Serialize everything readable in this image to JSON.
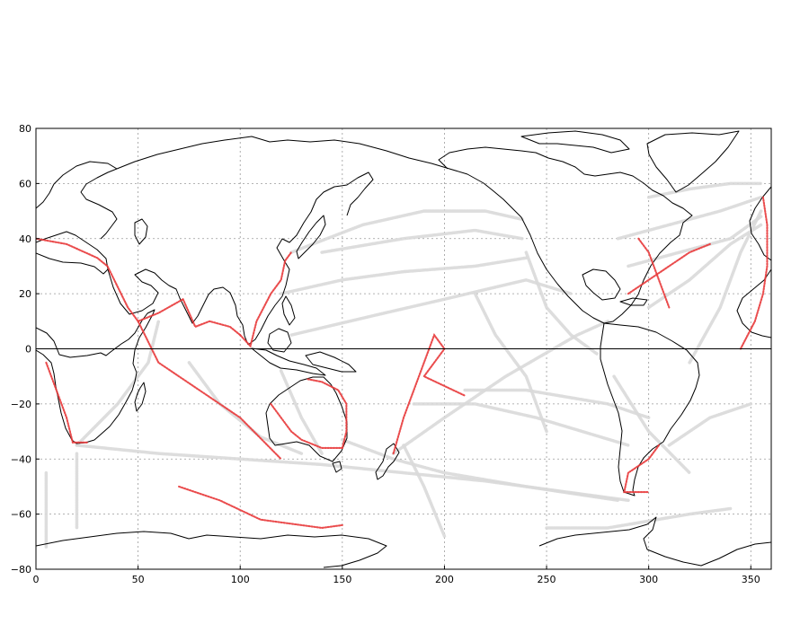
{
  "chart_data": {
    "type": "scatter",
    "xlim": [
      0,
      360
    ],
    "ylim": [
      -80,
      80
    ],
    "x_ticks": [
      0,
      50,
      100,
      150,
      200,
      250,
      300,
      350
    ],
    "y_ticks": [
      80,
      60,
      40,
      20,
      0,
      -20,
      -40,
      -60,
      -80
    ],
    "x_tick_labels": [
      "0",
      "50",
      "100",
      "150",
      "200",
      "250",
      "300",
      "350"
    ],
    "y_tick_labels": [
      "80",
      "60",
      "40",
      "20",
      "0",
      "−20",
      "−40",
      "−60",
      "−80"
    ],
    "grid": true,
    "equator_line": true,
    "colors": {
      "background_tracks": "#d9d9d9",
      "highlight_tracks": "#e8383a",
      "coastline": "#000000",
      "grid": "#9a9a9a"
    },
    "series": [
      {
        "role": "background",
        "tracks": [
          [
            [
              20,
              -35
            ],
            [
              60,
              -38
            ],
            [
              100,
              -40
            ],
            [
              140,
              -42
            ],
            [
              180,
              -45
            ],
            [
              220,
              -48
            ],
            [
              260,
              -52
            ],
            [
              290,
              -55
            ]
          ],
          [
            [
              20,
              -35
            ],
            [
              40,
              -20
            ],
            [
              55,
              -5
            ],
            [
              60,
              10
            ]
          ],
          [
            [
              75,
              -5
            ],
            [
              90,
              -20
            ],
            [
              110,
              -32
            ],
            [
              130,
              -38
            ]
          ],
          [
            [
              120,
              -8
            ],
            [
              130,
              -25
            ],
            [
              140,
              -38
            ]
          ],
          [
            [
              150,
              -33
            ],
            [
              175,
              -40
            ],
            [
              200,
              -45
            ],
            [
              240,
              -50
            ],
            [
              285,
              -55
            ]
          ],
          [
            [
              125,
              35
            ],
            [
              160,
              45
            ],
            [
              190,
              50
            ],
            [
              220,
              50
            ],
            [
              238,
              47
            ]
          ],
          [
            [
              140,
              35
            ],
            [
              180,
              40
            ],
            [
              215,
              43
            ],
            [
              238,
              40
            ]
          ],
          [
            [
              120,
              20
            ],
            [
              150,
              25
            ],
            [
              180,
              28
            ],
            [
              215,
              30
            ],
            [
              240,
              33
            ]
          ],
          [
            [
              125,
              5
            ],
            [
              165,
              12
            ],
            [
              200,
              18
            ],
            [
              240,
              25
            ],
            [
              262,
              20
            ]
          ],
          [
            [
              175,
              -38
            ],
            [
              200,
              -25
            ],
            [
              230,
              -10
            ],
            [
              265,
              5
            ],
            [
              280,
              10
            ]
          ],
          [
            [
              185,
              -20
            ],
            [
              215,
              -20
            ],
            [
              245,
              -25
            ],
            [
              290,
              -35
            ]
          ],
          [
            [
              210,
              -15
            ],
            [
              240,
              -15
            ],
            [
              280,
              -20
            ],
            [
              300,
              -25
            ]
          ],
          [
            [
              240,
              35
            ],
            [
              250,
              15
            ],
            [
              262,
              5
            ],
            [
              275,
              -2
            ]
          ],
          [
            [
              283,
              -10
            ],
            [
              300,
              -30
            ],
            [
              320,
              -45
            ]
          ],
          [
            [
              310,
              -35
            ],
            [
              330,
              -25
            ],
            [
              350,
              -20
            ]
          ],
          [
            [
              320,
              -5
            ],
            [
              335,
              15
            ],
            [
              345,
              35
            ],
            [
              355,
              50
            ]
          ],
          [
            [
              285,
              40
            ],
            [
              310,
              45
            ],
            [
              335,
              50
            ],
            [
              355,
              55
            ]
          ],
          [
            [
              290,
              30
            ],
            [
              315,
              35
            ],
            [
              340,
              40
            ],
            [
              355,
              48
            ]
          ],
          [
            [
              300,
              15
            ],
            [
              320,
              25
            ],
            [
              340,
              38
            ],
            [
              355,
              45
            ]
          ],
          [
            [
              300,
              55
            ],
            [
              320,
              58
            ],
            [
              340,
              60
            ],
            [
              355,
              60
            ]
          ],
          [
            [
              5,
              -45
            ],
            [
              5,
              -60
            ],
            [
              5,
              -72
            ]
          ],
          [
            [
              20,
              -38
            ],
            [
              20,
              -55
            ],
            [
              20,
              -65
            ]
          ],
          [
            [
              250,
              -65
            ],
            [
              280,
              -65
            ],
            [
              320,
              -60
            ],
            [
              340,
              -58
            ]
          ],
          [
            [
              250,
              -30
            ],
            [
              240,
              -10
            ],
            [
              225,
              5
            ],
            [
              215,
              20
            ]
          ],
          [
            [
              180,
              -35
            ],
            [
              190,
              -50
            ],
            [
              200,
              -68
            ]
          ]
        ]
      },
      {
        "role": "highlight",
        "tracks": [
          [
            [
              0,
              40
            ],
            [
              15,
              38
            ],
            [
              30,
              33
            ],
            [
              35,
              30
            ]
          ],
          [
            [
              35,
              30
            ],
            [
              45,
              15
            ],
            [
              50,
              10
            ],
            [
              60,
              13
            ],
            [
              72,
              18
            ]
          ],
          [
            [
              72,
              18
            ],
            [
              78,
              8
            ],
            [
              85,
              10
            ],
            [
              95,
              8
            ],
            [
              100,
              5
            ]
          ],
          [
            [
              100,
              5
            ],
            [
              105,
              1
            ],
            [
              108,
              10
            ],
            [
              115,
              20
            ],
            [
              120,
              25
            ],
            [
              122,
              32
            ],
            [
              125,
              35
            ]
          ],
          [
            [
              5,
              -5
            ],
            [
              10,
              -15
            ],
            [
              15,
              -25
            ],
            [
              18,
              -34
            ],
            [
              25,
              -34
            ]
          ],
          [
            [
              115,
              -20
            ],
            [
              120,
              -25
            ],
            [
              125,
              -30
            ],
            [
              130,
              -33
            ],
            [
              140,
              -36
            ],
            [
              150,
              -36
            ]
          ],
          [
            [
              150,
              -36
            ],
            [
              152,
              -30
            ],
            [
              152,
              -20
            ],
            [
              148,
              -15
            ],
            [
              140,
              -12
            ],
            [
              133,
              -11
            ]
          ],
          [
            [
              175,
              -38
            ],
            [
              180,
              -25
            ],
            [
              185,
              -15
            ],
            [
              190,
              -5
            ],
            [
              195,
              5
            ],
            [
              200,
              0
            ],
            [
              190,
              -10
            ],
            [
              210,
              -17
            ]
          ],
          [
            [
              50,
              10
            ],
            [
              60,
              -5
            ],
            [
              80,
              -15
            ],
            [
              100,
              -25
            ],
            [
              120,
              -40
            ]
          ],
          [
            [
              70,
              -50
            ],
            [
              90,
              -55
            ],
            [
              110,
              -62
            ],
            [
              140,
              -65
            ],
            [
              150,
              -64
            ]
          ],
          [
            [
              305,
              -35
            ],
            [
              300,
              -40
            ],
            [
              290,
              -45
            ],
            [
              288,
              -52
            ],
            [
              300,
              -52
            ]
          ],
          [
            [
              290,
              20
            ],
            [
              300,
              25
            ],
            [
              310,
              30
            ],
            [
              320,
              35
            ],
            [
              330,
              38
            ]
          ],
          [
            [
              295,
              40
            ],
            [
              300,
              35
            ],
            [
              305,
              25
            ],
            [
              310,
              15
            ]
          ],
          [
            [
              345,
              0
            ],
            [
              352,
              10
            ],
            [
              356,
              20
            ],
            [
              358,
              30
            ],
            [
              358,
              45
            ],
            [
              356,
              55
            ]
          ]
        ]
      }
    ]
  }
}
